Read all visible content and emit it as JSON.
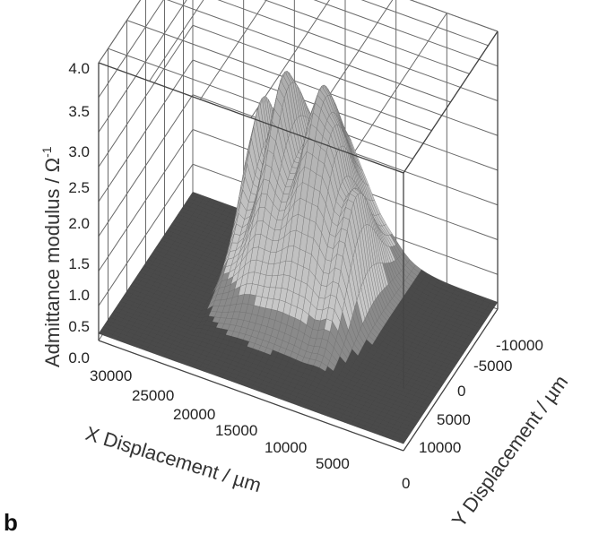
{
  "panel_label": "b",
  "chart_data": {
    "type": "surface",
    "title": "",
    "zlabel_main": "Admittance modulus / Ω",
    "zlabel_sup": "-1",
    "xlabel": "X Displacement / µm",
    "ylabel": "Y Displacement / µm",
    "z_ticks": [
      "0.0",
      "0.5",
      "1.0",
      "1.5",
      "2.0",
      "2.5",
      "3.0",
      "3.5",
      "4.0"
    ],
    "x_ticks": [
      "30000",
      "25000",
      "20000",
      "15000",
      "10000",
      "5000",
      "0"
    ],
    "y_ticks": [
      "-10000",
      "-5000",
      "0",
      "5000",
      "10000"
    ],
    "zlim": [
      0,
      4
    ],
    "xlim": [
      0,
      30000
    ],
    "ylim": [
      -12500,
      12500
    ],
    "grid": true,
    "background_value": 0.1,
    "peaks": [
      {
        "x": 22500,
        "y": -9000,
        "z": 3.4
      },
      {
        "x": 19000,
        "y": -7000,
        "z": 3.1
      },
      {
        "x": 15000,
        "y": -6000,
        "z": 2.9
      },
      {
        "x": 13000,
        "y": -4500,
        "z": 2.8
      },
      {
        "x": 10500,
        "y": -3000,
        "z": 2.9
      }
    ]
  }
}
